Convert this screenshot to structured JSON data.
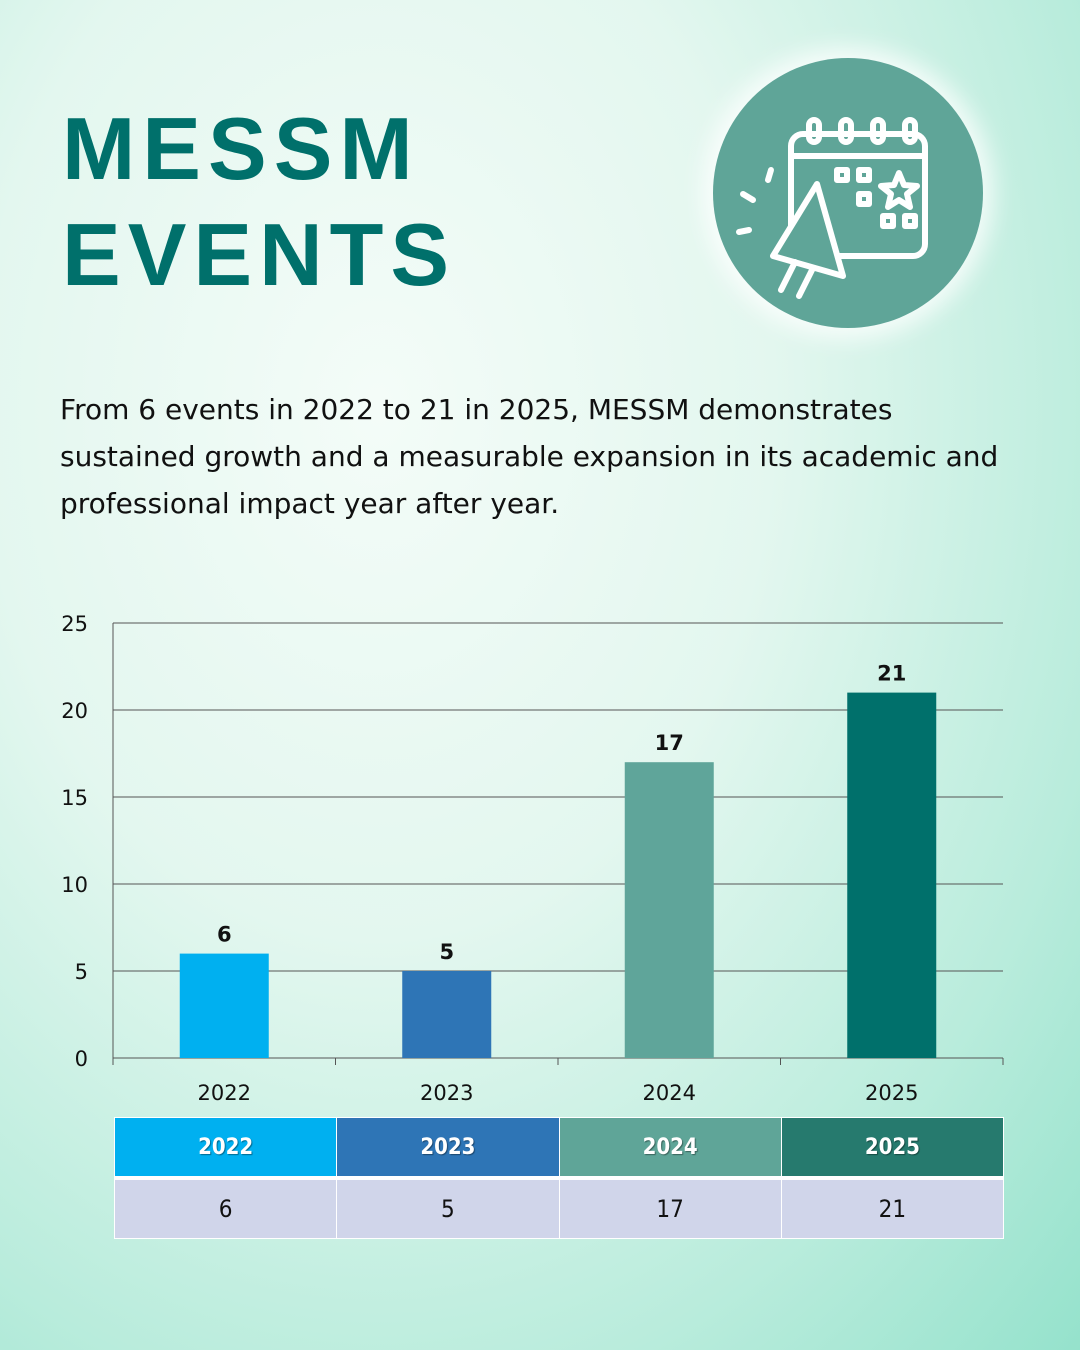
{
  "header": {
    "title_line1": "MESSM",
    "title_line2": "EVENTS",
    "icon": "calendar-megaphone-icon",
    "badge_color": "#5fa598"
  },
  "description": "From 6 events in 2022 to 21 in 2025, MESSM demonstrates sustained growth and a measurable expansion in its academic and professional impact year after year.",
  "chart_data": {
    "type": "bar",
    "categories": [
      "2022",
      "2023",
      "2024",
      "2025"
    ],
    "values": [
      6,
      5,
      17,
      21
    ],
    "colors": [
      "#00b0f0",
      "#2e75b6",
      "#5fa59a",
      "#00706b"
    ],
    "ylim": [
      0,
      25
    ],
    "yticks": [
      0,
      5,
      10,
      15,
      20,
      25
    ],
    "grid": true,
    "data_labels": true,
    "title": "",
    "xlabel": "",
    "ylabel": ""
  },
  "table": {
    "headers": [
      "2022",
      "2023",
      "2024",
      "2025"
    ],
    "header_colors": [
      "#00b0f0",
      "#2e75b6",
      "#5fa598",
      "#267a6e"
    ],
    "values": [
      "6",
      "5",
      "17",
      "21"
    ]
  }
}
